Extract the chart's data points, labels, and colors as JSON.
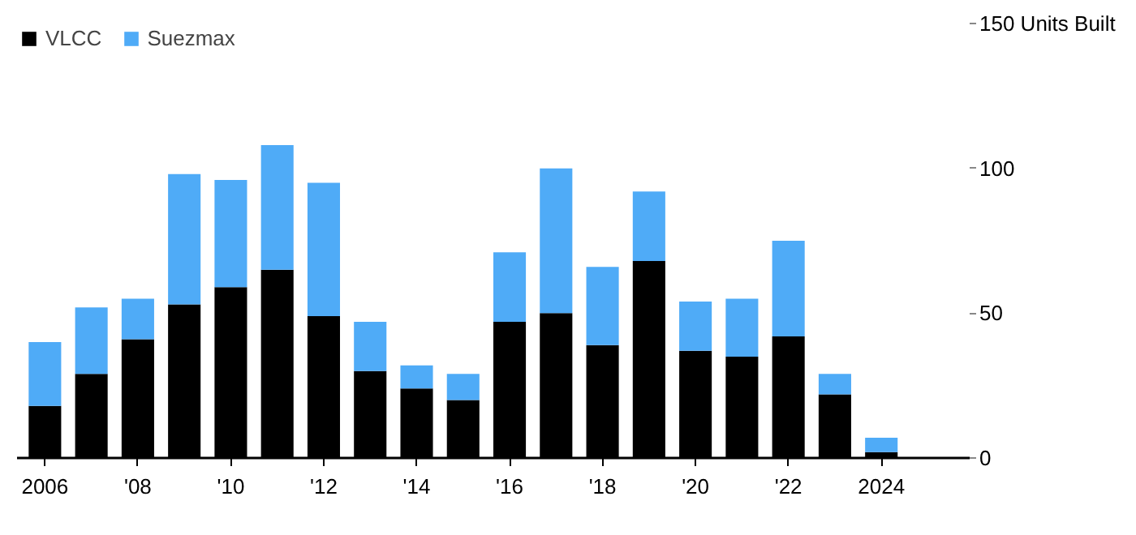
{
  "chart_data": {
    "type": "bar",
    "stacked": true,
    "categories": [
      "2006",
      null,
      "'08",
      null,
      "'10",
      null,
      "'12",
      null,
      "'14",
      null,
      "'16",
      null,
      "'18",
      null,
      "'20",
      null,
      "'22",
      null,
      "2024"
    ],
    "series": [
      {
        "name": "VLCC",
        "color": "#000000",
        "values": [
          18,
          29,
          41,
          53,
          59,
          65,
          49,
          30,
          24,
          20,
          47,
          50,
          39,
          68,
          37,
          35,
          42,
          22,
          2
        ]
      },
      {
        "name": "Suezmax",
        "color": "#4fabf7",
        "values": [
          22,
          23,
          14,
          45,
          37,
          43,
          46,
          17,
          8,
          9,
          24,
          50,
          27,
          24,
          17,
          20,
          33,
          7,
          5
        ]
      }
    ],
    "ylim": [
      0,
      150
    ],
    "yticks": [
      0,
      50,
      100,
      {
        "value": 150,
        "label": "150 Units Built"
      }
    ],
    "grid": false,
    "legend": "top left"
  }
}
